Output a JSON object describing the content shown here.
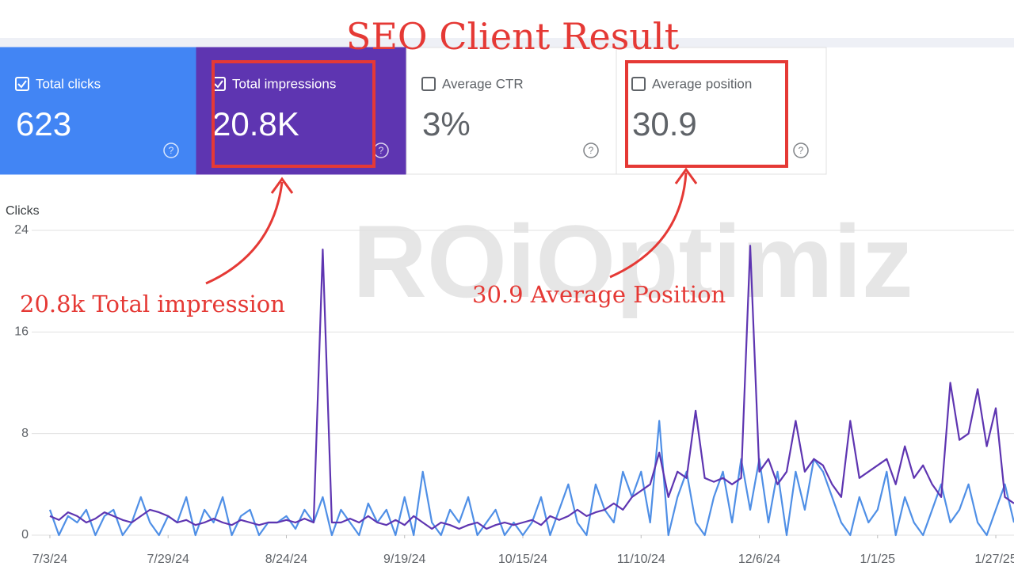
{
  "header": {
    "title": "SEO Client Result"
  },
  "cards": [
    {
      "label": "Total clicks",
      "value": "623",
      "checked": true,
      "bg": "#4285f4",
      "fg": "#ffffff"
    },
    {
      "label": "Total impressions",
      "value": "20.8K",
      "checked": true,
      "bg": "#5e35b1",
      "fg": "#ffffff"
    },
    {
      "label": "Average CTR",
      "value": "3%",
      "checked": false,
      "bg": "#ffffff",
      "fg": "#5f6368"
    },
    {
      "label": "Average position",
      "value": "30.9",
      "checked": false,
      "bg": "#ffffff",
      "fg": "#5f6368"
    }
  ],
  "annotations": [
    "20.8k Total impression",
    "30.9 Average Position"
  ],
  "watermark": "ROiOptimiz",
  "chart_data": {
    "type": "line",
    "y_label": "Clicks",
    "xlim": [
      -2,
      106
    ],
    "xticks": [
      {
        "value": 0,
        "label": "7/3/24"
      },
      {
        "value": 13,
        "label": "7/29/24"
      },
      {
        "value": 26,
        "label": "8/24/24"
      },
      {
        "value": 39,
        "label": "9/19/24"
      },
      {
        "value": 52,
        "label": "10/15/24"
      },
      {
        "value": 65,
        "label": "11/10/24"
      },
      {
        "value": 78,
        "label": "12/6/24"
      },
      {
        "value": 91,
        "label": "1/1/25"
      },
      {
        "value": 104,
        "label": "1/27/25"
      }
    ],
    "ylim": [
      0,
      24
    ],
    "yticks": [
      0,
      8,
      16,
      24
    ],
    "grid": true,
    "series": [
      {
        "color": "#5e35b1",
        "values": [
          1.5,
          1.2,
          1.8,
          1.5,
          1,
          1.3,
          1.8,
          1.5,
          1.2,
          1,
          1.5,
          2,
          1.8,
          1.5,
          1,
          1.2,
          0.8,
          1,
          1.3,
          1,
          0.8,
          1.2,
          1,
          0.8,
          1,
          1,
          1.2,
          1,
          1.3,
          1,
          22.5,
          1,
          1,
          1.3,
          1,
          1.5,
          1,
          0.8,
          1.2,
          0.8,
          1.5,
          1,
          0.5,
          1,
          0.8,
          0.5,
          0.8,
          1,
          0.5,
          0.8,
          1,
          0.8,
          1,
          1.2,
          0.8,
          1.5,
          1.2,
          1.5,
          2,
          1.5,
          1.8,
          2,
          2.5,
          2,
          3,
          3.5,
          4,
          6.5,
          3,
          5,
          4.5,
          9.8,
          4.5,
          4.2,
          4.5,
          4,
          4.5,
          22.8,
          5,
          6,
          4,
          5,
          9,
          5,
          6,
          5.5,
          4,
          3,
          9,
          4.5,
          5,
          5.5,
          6,
          4,
          7,
          4.5,
          5.5,
          4,
          3,
          12,
          7.5,
          8,
          11.5,
          7,
          10,
          3,
          2.5
        ]
      },
      {
        "color": "#4f8fe6",
        "values": [
          2,
          0,
          1.5,
          1,
          2,
          0,
          1.5,
          2,
          0,
          1,
          3,
          1,
          0,
          1.5,
          1,
          3,
          0,
          2,
          1,
          3,
          0,
          1.5,
          2,
          0,
          1,
          1,
          1.5,
          0.5,
          2,
          1,
          3,
          0,
          2,
          1,
          0,
          2.5,
          1,
          2,
          0,
          3,
          0,
          5,
          1,
          0,
          2,
          1,
          3,
          0,
          1,
          2,
          0,
          1,
          0,
          1,
          3,
          0,
          2,
          4,
          1,
          0,
          4,
          2,
          1,
          5,
          3,
          5,
          1,
          9,
          0,
          3,
          5,
          1,
          0,
          3,
          5,
          1,
          6,
          2,
          6,
          1,
          5,
          0,
          5,
          2,
          6,
          5,
          3,
          1,
          0,
          3,
          1,
          2,
          5,
          0,
          3,
          1,
          0,
          2,
          4,
          1,
          2,
          4,
          1,
          0,
          2,
          4,
          1
        ]
      }
    ]
  }
}
